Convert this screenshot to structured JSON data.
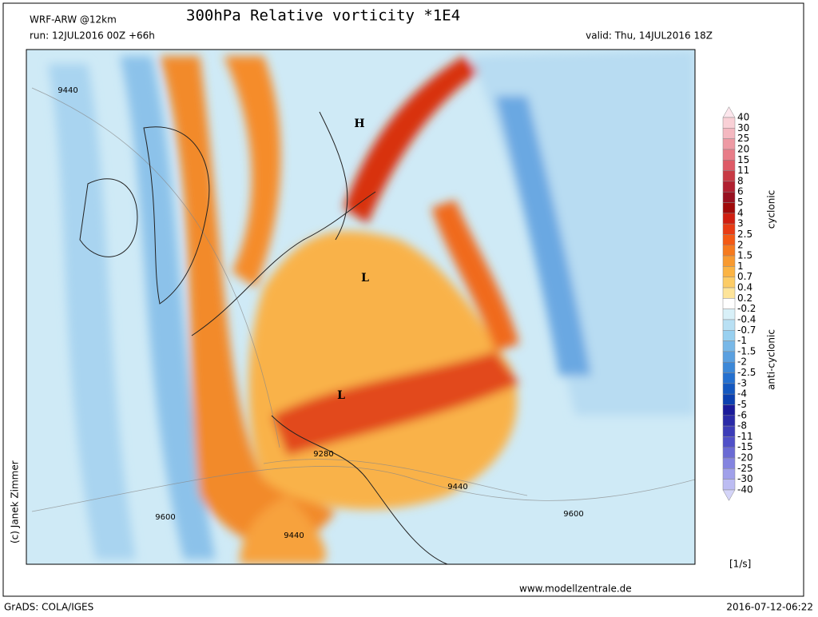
{
  "header": {
    "model": "WRF-ARW @12km",
    "title": "300hPa Relative vorticity *1E4",
    "run": "run: 12JUL2016 00Z +66h",
    "valid": "valid: Thu, 14JUL2016 18Z"
  },
  "map": {
    "contour_labels": [
      "9440",
      "9440",
      "9440",
      "9280",
      "9600",
      "9600"
    ],
    "pressure_centers": [
      "H",
      "L",
      "L"
    ],
    "copyright": "(c) Janek Zimmer"
  },
  "colorbar": {
    "labels": [
      "40",
      "30",
      "25",
      "20",
      "15",
      "11",
      "8",
      "6",
      "5",
      "4",
      "3",
      "2.5",
      "2",
      "1.5",
      "1",
      "0.7",
      "0.4",
      "0.2",
      "-0.2",
      "-0.4",
      "-0.7",
      "-1",
      "-1.5",
      "-2",
      "-2.5",
      "-3",
      "-4",
      "-5",
      "-6",
      "-8",
      "-11",
      "-15",
      "-20",
      "-25",
      "-30",
      "-40"
    ],
    "colors": [
      "#fce6ec",
      "#f9d0d6",
      "#f4b8c0",
      "#ee9aa4",
      "#e87c88",
      "#de5a66",
      "#c83a44",
      "#b02030",
      "#981020",
      "#a00a0a",
      "#d01e10",
      "#e83c14",
      "#f45a14",
      "#f67a1e",
      "#f89a30",
      "#fbb444",
      "#fccc66",
      "#fde49a",
      "#ffffff",
      "#d8f0f8",
      "#b8e0f4",
      "#98d0f0",
      "#78b8e8",
      "#5aa0e0",
      "#3c88d8",
      "#2470d0",
      "#1458c0",
      "#0c40b0",
      "#1a1a9a",
      "#2a2aa8",
      "#3c3cb8",
      "#5050c8",
      "#6a6ad4",
      "#8484e0",
      "#a0a0ea",
      "#bcbcf2",
      "#d4d4f8"
    ],
    "cyclonic": "cyclonic",
    "anticyclonic": "anti-cyclonic",
    "unit": "[1/s]"
  },
  "footer": {
    "website": "www.modellzentrale.de",
    "software": "GrADS: COLA/IGES",
    "timestamp": "2016-07-12-06:22"
  }
}
